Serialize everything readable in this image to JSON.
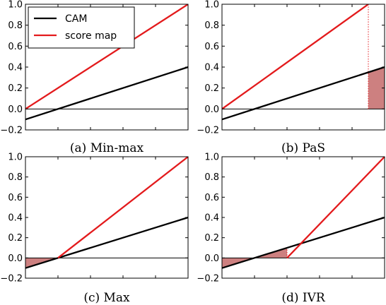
{
  "colors": {
    "cam": "#000000",
    "score": "#e31a1c",
    "fill": "#cd8080",
    "zero": "#000000"
  },
  "chart_data": [
    {
      "type": "line",
      "title": "(a) Min-max",
      "xlim": [
        0,
        1
      ],
      "ylim": [
        -0.2,
        1.0
      ],
      "yticks": [
        "−0.2",
        "0.0",
        "0.2",
        "0.4",
        "0.6",
        "0.8",
        "1.0"
      ],
      "ytick_values": [
        -0.2,
        0.0,
        0.2,
        0.4,
        0.6,
        0.8,
        1.0
      ],
      "series": [
        {
          "name": "CAM",
          "color_key": "cam",
          "x": [
            0,
            1
          ],
          "y": [
            -0.1,
            0.4
          ]
        },
        {
          "name": "score map",
          "color_key": "score",
          "x": [
            0,
            1
          ],
          "y": [
            0.0,
            1.0
          ]
        }
      ],
      "shading": [],
      "legend": {
        "position": "upper-left",
        "entries": [
          "CAM",
          "score map"
        ]
      }
    },
    {
      "type": "line",
      "title": "(b) PaS",
      "xlim": [
        0,
        1
      ],
      "ylim": [
        -0.2,
        1.0
      ],
      "yticks": [
        "−0.2",
        "0.0",
        "0.2",
        "0.4",
        "0.6",
        "0.8",
        "1.0"
      ],
      "ytick_values": [
        -0.2,
        0.0,
        0.2,
        0.4,
        0.6,
        0.8,
        1.0
      ],
      "series": [
        {
          "name": "CAM",
          "color_key": "cam",
          "x": [
            0,
            1
          ],
          "y": [
            -0.1,
            0.4
          ]
        },
        {
          "name": "score map",
          "color_key": "score",
          "x": [
            0,
            0.9
          ],
          "y": [
            0.0,
            1.0
          ]
        }
      ],
      "vlines": [
        {
          "x": 0.9,
          "y0": 0.0,
          "y1": 1.0,
          "style": "dotted"
        }
      ],
      "shading": [
        {
          "x0": 0.9,
          "x1": 1.0,
          "between": [
            "zero",
            "CAM"
          ]
        }
      ]
    },
    {
      "type": "line",
      "title": "(c) Max",
      "xlim": [
        0,
        1
      ],
      "ylim": [
        -0.2,
        1.0
      ],
      "yticks": [
        "−0.2",
        "0.0",
        "0.2",
        "0.4",
        "0.6",
        "0.8",
        "1.0"
      ],
      "ytick_values": [
        -0.2,
        0.0,
        0.2,
        0.4,
        0.6,
        0.8,
        1.0
      ],
      "series": [
        {
          "name": "CAM",
          "color_key": "cam",
          "x": [
            0,
            1
          ],
          "y": [
            -0.1,
            0.4
          ]
        },
        {
          "name": "score map",
          "color_key": "score",
          "x": [
            0.2,
            1
          ],
          "y": [
            0.0,
            1.0
          ]
        }
      ],
      "shading": [
        {
          "x0": 0.0,
          "x1": 0.2,
          "between": [
            "zero",
            "CAM"
          ]
        }
      ]
    },
    {
      "type": "line",
      "title": "(d) IVR",
      "xlim": [
        0,
        1
      ],
      "ylim": [
        -0.2,
        1.0
      ],
      "yticks": [
        "−0.2",
        "0.0",
        "0.2",
        "0.4",
        "0.6",
        "0.8",
        "1.0"
      ],
      "ytick_values": [
        -0.2,
        0.0,
        0.2,
        0.4,
        0.6,
        0.8,
        1.0
      ],
      "series": [
        {
          "name": "CAM",
          "color_key": "cam",
          "x": [
            0,
            1
          ],
          "y": [
            -0.1,
            0.4
          ]
        },
        {
          "name": "score map",
          "color_key": "score",
          "x": [
            0.4,
            1
          ],
          "y": [
            0.0,
            1.0
          ]
        }
      ],
      "vlines": [
        {
          "x": 0.4,
          "y0": 0.0,
          "y1": 0.1,
          "style": "dotted"
        }
      ],
      "shading": [
        {
          "x0": 0.0,
          "x1": 0.4,
          "between": [
            "zero",
            "CAM"
          ]
        }
      ]
    }
  ]
}
